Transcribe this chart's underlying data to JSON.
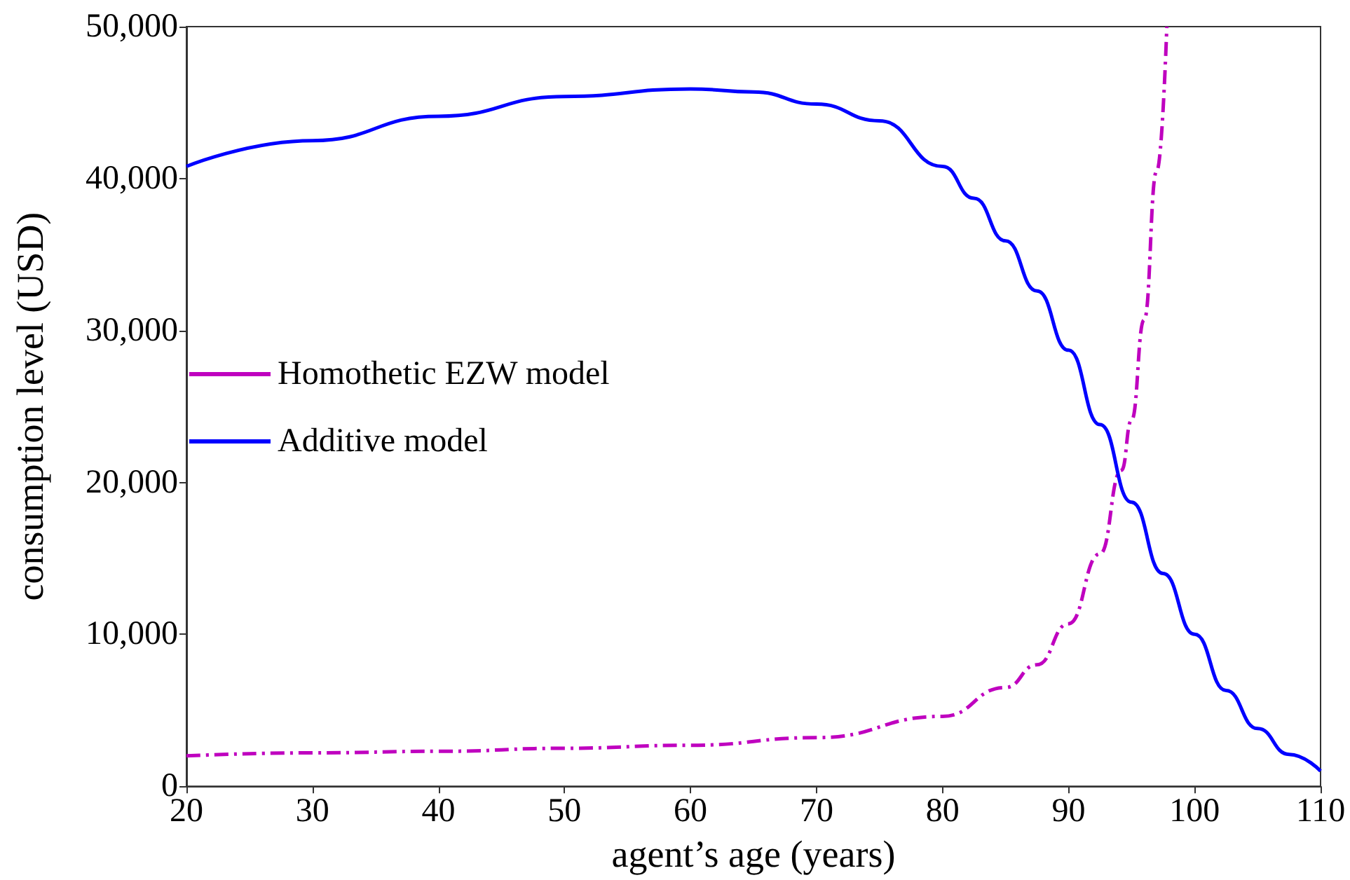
{
  "chart_data": {
    "type": "line",
    "xlabel": "agent’s age (years)",
    "ylabel": "consumption level (USD)",
    "xlim": [
      20,
      110
    ],
    "xticks": [
      20,
      30,
      40,
      50,
      60,
      70,
      80,
      90,
      100,
      110
    ],
    "ylim": [
      0,
      50000
    ],
    "yticks": [
      0,
      {
        "value": 10000,
        "label": "10,000"
      },
      {
        "value": 20000,
        "label": "20,000"
      },
      {
        "value": 30000,
        "label": "30,000"
      },
      {
        "value": 40000,
        "label": "40,000"
      },
      {
        "value": 50000,
        "label": "50,000"
      }
    ],
    "grid": false,
    "legend": "left",
    "marker": "none",
    "series": [
      {
        "name": "Homothetic EZW model",
        "color": "#bf00bf",
        "line_style": "dashed",
        "x": [
          20,
          30,
          40,
          50,
          60,
          70,
          80,
          85,
          87.5,
          90,
          92.5,
          94.2,
          95,
          96,
          97,
          97.8
        ],
        "values": [
          2000,
          2200,
          2300,
          2500,
          2700,
          3200,
          4600,
          6500,
          8000,
          10700,
          15300,
          20800,
          24100,
          30700,
          40500,
          50000
        ]
      },
      {
        "name": "Additive model",
        "color": "#0000ff",
        "line_style": "solid",
        "x": [
          20,
          30,
          40,
          50,
          60,
          65,
          70,
          75,
          80,
          82.5,
          85,
          87.5,
          90,
          92.5,
          95,
          97.5,
          100,
          102.5,
          105,
          107.5,
          110
        ],
        "values": [
          40800,
          42500,
          44100,
          45400,
          45900,
          45700,
          44900,
          43800,
          40800,
          38700,
          35900,
          32600,
          28700,
          23800,
          18700,
          14000,
          10000,
          6300,
          3800,
          2100,
          1000
        ]
      }
    ]
  }
}
